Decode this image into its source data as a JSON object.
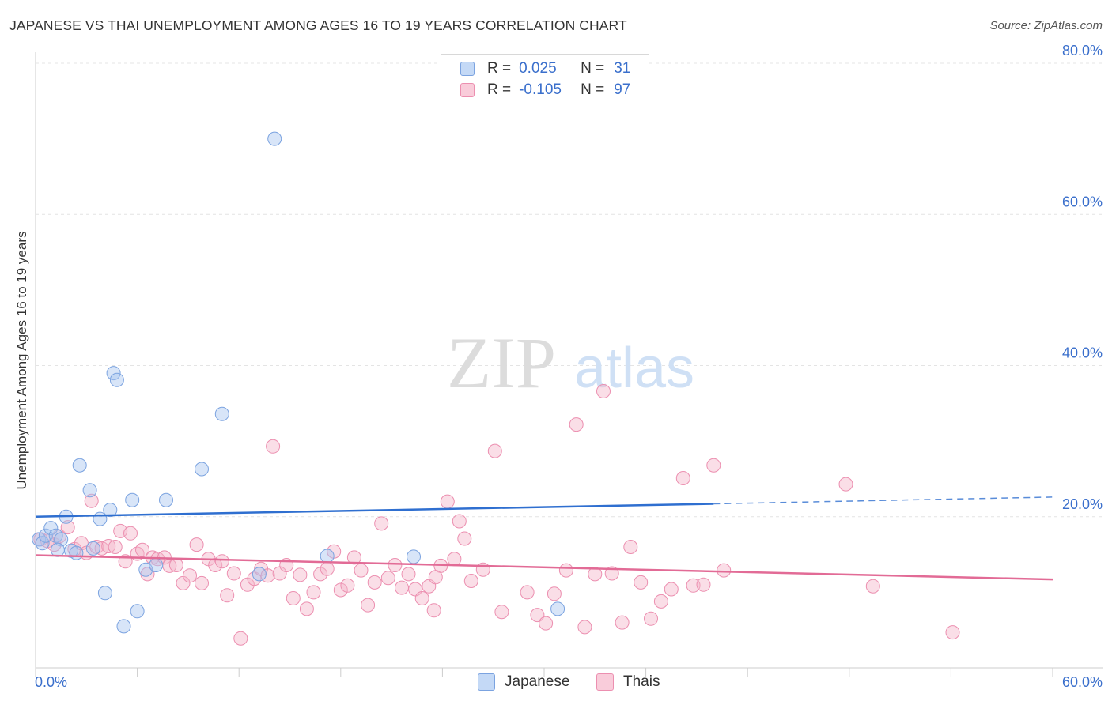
{
  "title": "JAPANESE VS THAI UNEMPLOYMENT AMONG AGES 16 TO 19 YEARS CORRELATION CHART",
  "source": "Source: ZipAtlas.com",
  "watermark": {
    "zip": "ZIP",
    "atlas": "atlas"
  },
  "legend": {
    "rows": [
      {
        "r_label": "R =",
        "r_value": "0.025",
        "n_label": "N =",
        "n_value": "31",
        "color": "#a9c6f0"
      },
      {
        "r_label": "R =",
        "r_value": "-0.105",
        "n_label": "N =",
        "n_value": "97",
        "color": "#f5b6c9"
      }
    ]
  },
  "bottom_legend": {
    "japanese": "Japanese",
    "thais": "Thais"
  },
  "chart_data": {
    "type": "scatter",
    "title": "JAPANESE VS THAI UNEMPLOYMENT AMONG AGES 16 TO 19 YEARS CORRELATION CHART",
    "xlabel": "",
    "ylabel": "Unemployment Among Ages 16 to 19 years",
    "xlim": [
      0,
      60
    ],
    "ylim": [
      0,
      80
    ],
    "x_tick_labels": {
      "min": "0.0%",
      "max": "60.0%"
    },
    "y_ticks": [
      20,
      40,
      60,
      80
    ],
    "y_tick_labels": [
      "20.0%",
      "40.0%",
      "60.0%",
      "80.0%"
    ],
    "grid": true,
    "series": [
      {
        "name": "Japanese",
        "color": "#a9c6f0",
        "stroke": "#7ba3e0",
        "line_color": "#2f6fd0",
        "trend": {
          "x0": 0,
          "y0": 20.0,
          "x1": 40.0,
          "y1": 21.7,
          "dash_to_x": 60,
          "dash_to_y": 22.6
        },
        "points": [
          [
            0.2,
            17.0
          ],
          [
            0.4,
            16.5
          ],
          [
            0.6,
            17.5
          ],
          [
            0.9,
            18.5
          ],
          [
            1.2,
            17.5
          ],
          [
            1.5,
            17.0
          ],
          [
            1.8,
            20.0
          ],
          [
            2.1,
            15.5
          ],
          [
            2.4,
            15.2
          ],
          [
            2.6,
            26.8
          ],
          [
            3.2,
            23.5
          ],
          [
            3.4,
            15.8
          ],
          [
            3.8,
            19.7
          ],
          [
            4.1,
            9.9
          ],
          [
            4.4,
            20.9
          ],
          [
            4.6,
            39.0
          ],
          [
            4.8,
            38.1
          ],
          [
            5.2,
            5.5
          ],
          [
            5.7,
            22.2
          ],
          [
            6.0,
            7.5
          ],
          [
            6.5,
            13.0
          ],
          [
            7.1,
            13.6
          ],
          [
            7.7,
            22.2
          ],
          [
            9.8,
            26.3
          ],
          [
            11.0,
            33.6
          ],
          [
            13.2,
            12.4
          ],
          [
            14.1,
            70.0
          ],
          [
            17.2,
            14.8
          ],
          [
            22.3,
            14.7
          ],
          [
            30.8,
            7.8
          ],
          [
            1.3,
            15.6
          ]
        ]
      },
      {
        "name": "Thais",
        "color": "#f5b6c9",
        "stroke": "#ec8fb0",
        "line_color": "#e26b96",
        "trend": {
          "x0": 0,
          "y0": 14.9,
          "x1": 60,
          "y1": 11.7
        },
        "points": [
          [
            0.3,
            17.0
          ],
          [
            0.7,
            16.8
          ],
          [
            1.1,
            16.3
          ],
          [
            1.4,
            17.4
          ],
          [
            1.9,
            18.6
          ],
          [
            2.3,
            15.7
          ],
          [
            2.7,
            16.5
          ],
          [
            3.0,
            15.2
          ],
          [
            3.3,
            22.1
          ],
          [
            3.6,
            16.0
          ],
          [
            3.9,
            15.8
          ],
          [
            4.3,
            16.1
          ],
          [
            4.7,
            16.0
          ],
          [
            5.0,
            18.1
          ],
          [
            5.3,
            14.1
          ],
          [
            5.6,
            17.8
          ],
          [
            6.0,
            15.1
          ],
          [
            6.3,
            15.6
          ],
          [
            6.6,
            12.4
          ],
          [
            6.9,
            14.6
          ],
          [
            7.2,
            14.4
          ],
          [
            7.6,
            14.6
          ],
          [
            7.9,
            13.5
          ],
          [
            8.3,
            13.6
          ],
          [
            8.7,
            11.2
          ],
          [
            9.1,
            12.2
          ],
          [
            9.5,
            16.3
          ],
          [
            9.8,
            11.2
          ],
          [
            10.2,
            14.4
          ],
          [
            10.6,
            13.6
          ],
          [
            11.0,
            14.1
          ],
          [
            11.3,
            9.6
          ],
          [
            11.7,
            12.5
          ],
          [
            12.1,
            3.9
          ],
          [
            12.5,
            11.0
          ],
          [
            12.9,
            11.8
          ],
          [
            13.3,
            13.1
          ],
          [
            13.7,
            12.2
          ],
          [
            14.0,
            29.3
          ],
          [
            14.4,
            12.5
          ],
          [
            14.8,
            13.6
          ],
          [
            15.2,
            9.2
          ],
          [
            15.6,
            12.3
          ],
          [
            16.0,
            7.8
          ],
          [
            16.4,
            10.0
          ],
          [
            16.8,
            12.4
          ],
          [
            17.2,
            13.1
          ],
          [
            17.6,
            15.4
          ],
          [
            18.0,
            10.3
          ],
          [
            18.4,
            10.9
          ],
          [
            18.8,
            14.6
          ],
          [
            19.2,
            12.9
          ],
          [
            19.6,
            8.3
          ],
          [
            20.0,
            11.3
          ],
          [
            20.4,
            19.1
          ],
          [
            20.8,
            11.9
          ],
          [
            21.2,
            13.6
          ],
          [
            21.6,
            10.6
          ],
          [
            22.0,
            12.4
          ],
          [
            22.4,
            10.4
          ],
          [
            22.8,
            9.2
          ],
          [
            23.2,
            10.8
          ],
          [
            23.5,
            7.6
          ],
          [
            23.9,
            13.5
          ],
          [
            24.3,
            22.0
          ],
          [
            24.7,
            14.4
          ],
          [
            25.0,
            19.4
          ],
          [
            25.3,
            17.1
          ],
          [
            25.7,
            11.5
          ],
          [
            26.4,
            13.0
          ],
          [
            27.1,
            28.7
          ],
          [
            27.5,
            7.4
          ],
          [
            29.0,
            10.0
          ],
          [
            29.6,
            7.0
          ],
          [
            30.1,
            5.9
          ],
          [
            30.6,
            9.8
          ],
          [
            31.3,
            12.9
          ],
          [
            31.9,
            32.2
          ],
          [
            32.4,
            5.4
          ],
          [
            33.0,
            12.4
          ],
          [
            33.5,
            36.6
          ],
          [
            34.0,
            12.5
          ],
          [
            34.6,
            6.0
          ],
          [
            35.1,
            16.0
          ],
          [
            35.7,
            11.3
          ],
          [
            36.3,
            6.5
          ],
          [
            36.9,
            8.8
          ],
          [
            37.5,
            10.4
          ],
          [
            38.2,
            25.1
          ],
          [
            38.8,
            10.9
          ],
          [
            39.4,
            11.0
          ],
          [
            40.0,
            26.8
          ],
          [
            40.6,
            12.9
          ],
          [
            47.8,
            24.3
          ],
          [
            49.4,
            10.8
          ],
          [
            54.1,
            4.7
          ],
          [
            23.6,
            12.0
          ]
        ]
      }
    ]
  }
}
